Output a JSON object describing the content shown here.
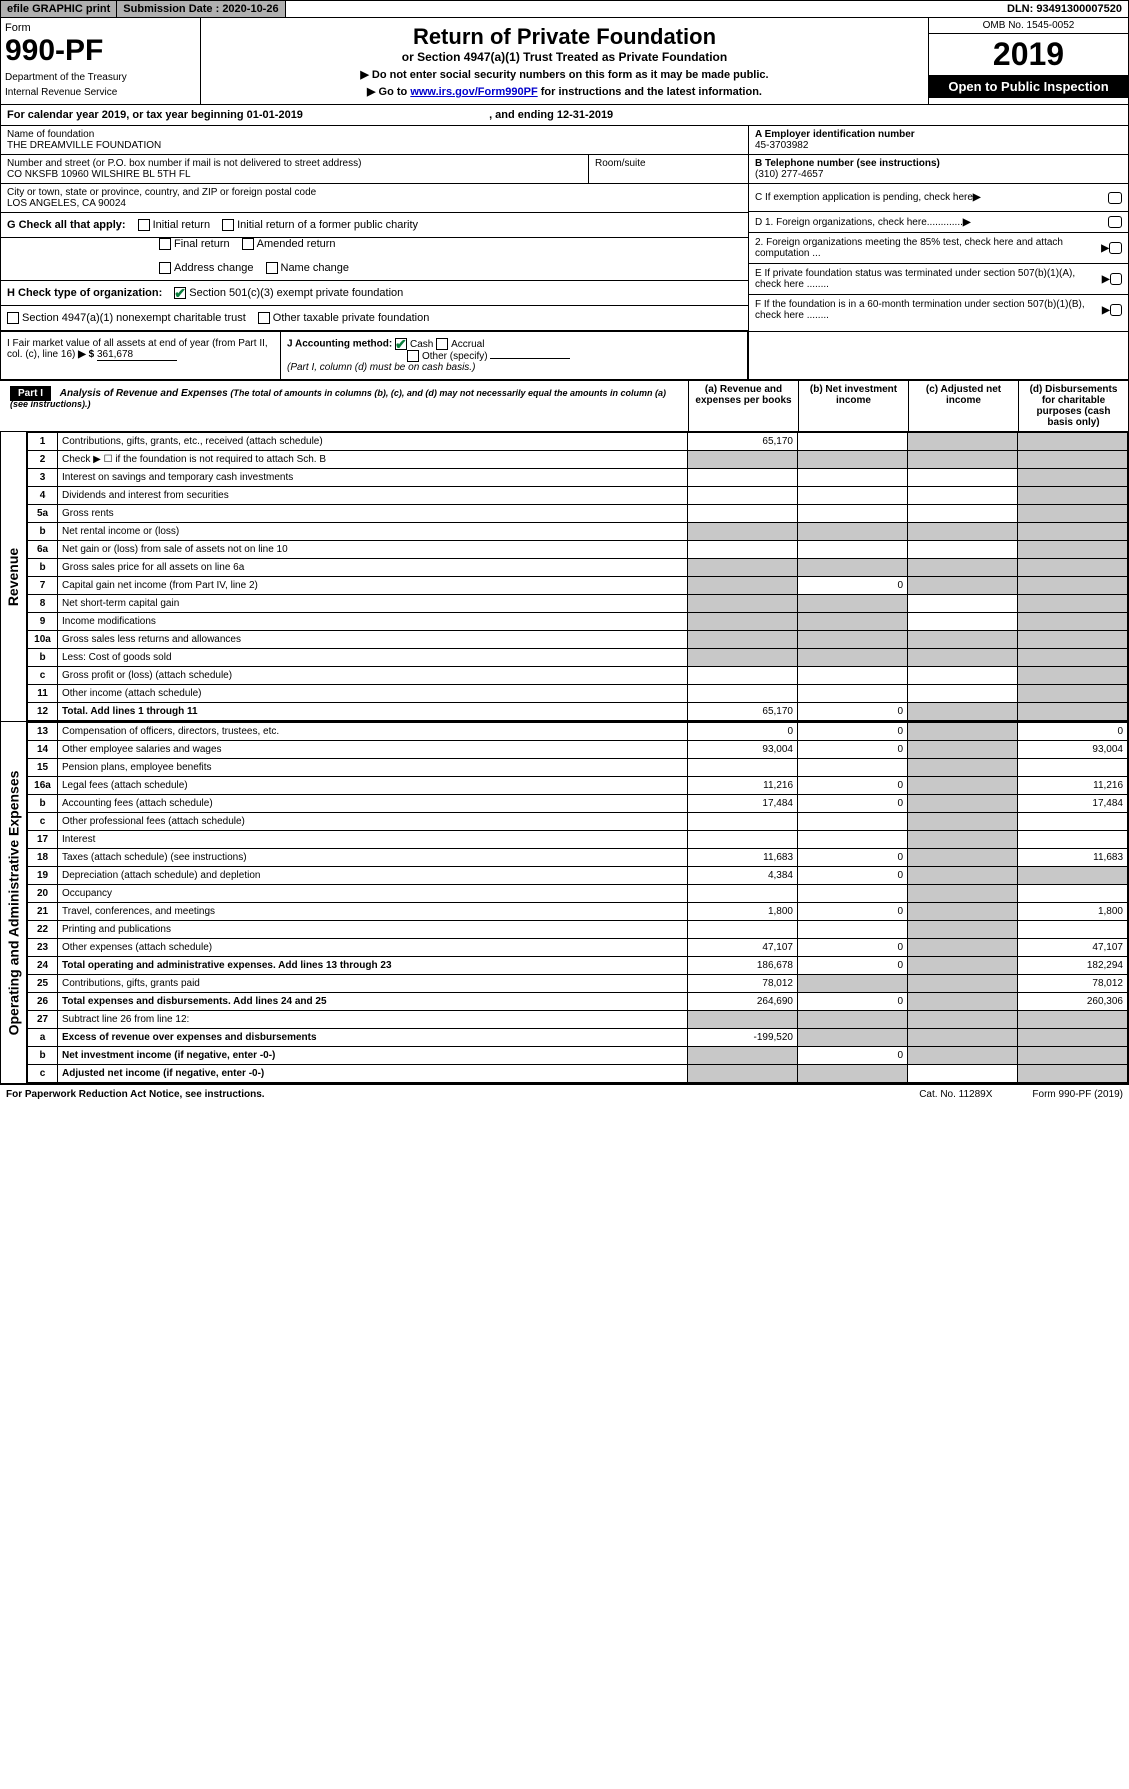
{
  "topbar": {
    "efile": "efile GRAPHIC print",
    "submission": "Submission Date : 2020-10-26",
    "dln": "DLN: 93491300007520"
  },
  "header": {
    "form_label": "Form",
    "form_number": "990-PF",
    "dept": "Department of the Treasury",
    "irs": "Internal Revenue Service",
    "title": "Return of Private Foundation",
    "subtitle": "or Section 4947(a)(1) Trust Treated as Private Foundation",
    "warn1": "▶ Do not enter social security numbers on this form as it may be made public.",
    "warn2_pre": "▶ Go to ",
    "warn2_link": "www.irs.gov/Form990PF",
    "warn2_post": " for instructions and the latest information.",
    "omb": "OMB No. 1545-0052",
    "year": "2019",
    "open": "Open to Public Inspection"
  },
  "calyear": {
    "pre": "For calendar year 2019, or tax year beginning ",
    "begin": "01-01-2019",
    "mid": " , and ending ",
    "end": "12-31-2019"
  },
  "foundation": {
    "name_label": "Name of foundation",
    "name": "THE DREAMVILLE FOUNDATION",
    "addr_label": "Number and street (or P.O. box number if mail is not delivered to street address)",
    "addr": "CO NKSFB 10960 WILSHIRE BL 5TH FL",
    "room_label": "Room/suite",
    "city_label": "City or town, state or province, country, and ZIP or foreign postal code",
    "city": "LOS ANGELES, CA  90024"
  },
  "right_info": {
    "a_label": "A Employer identification number",
    "a_val": "45-3703982",
    "b_label": "B Telephone number (see instructions)",
    "b_val": "(310) 277-4657",
    "c_label": "C If exemption application is pending, check here",
    "d1": "D 1. Foreign organizations, check here.............",
    "d2": "2. Foreign organizations meeting the 85% test, check here and attach computation ...",
    "e": "E If private foundation status was terminated under section 507(b)(1)(A), check here ........",
    "f": "F If the foundation is in a 60-month termination under section 507(b)(1)(B), check here ........"
  },
  "g": {
    "label": "G Check all that apply:",
    "initial": "Initial return",
    "initial_former": "Initial return of a former public charity",
    "final": "Final return",
    "amended": "Amended return",
    "addr_change": "Address change",
    "name_change": "Name change"
  },
  "h": {
    "label": "H Check type of organization:",
    "s501": "Section 501(c)(3) exempt private foundation",
    "s4947": "Section 4947(a)(1) nonexempt charitable trust",
    "other_tax": "Other taxable private foundation"
  },
  "i": {
    "label": "I Fair market value of all assets at end of year (from Part II, col. (c), line 16) ",
    "arrow": "▶ $",
    "val": "361,678"
  },
  "j": {
    "label": "J Accounting method:",
    "cash": "Cash",
    "accrual": "Accrual",
    "other": "Other (specify)",
    "note": "(Part I, column (d) must be on cash basis.)"
  },
  "part1": {
    "label": "Part I",
    "title": "Analysis of Revenue and Expenses",
    "note": "(The total of amounts in columns (b), (c), and (d) may not necessarily equal the amounts in column (a) (see instructions).)",
    "col_a": "(a) Revenue and expenses per books",
    "col_b": "(b) Net investment income",
    "col_c": "(c) Adjusted net income",
    "col_d": "(d) Disbursements for charitable purposes (cash basis only)"
  },
  "side": {
    "revenue": "Revenue",
    "expenses": "Operating and Administrative Expenses"
  },
  "rows": {
    "r1": {
      "n": "1",
      "d": "Contributions, gifts, grants, etc., received (attach schedule)",
      "a": "65,170"
    },
    "r2": {
      "n": "2",
      "d": "Check ▶ ☐ if the foundation is not required to attach Sch. B"
    },
    "r3": {
      "n": "3",
      "d": "Interest on savings and temporary cash investments"
    },
    "r4": {
      "n": "4",
      "d": "Dividends and interest from securities"
    },
    "r5a": {
      "n": "5a",
      "d": "Gross rents"
    },
    "r5b": {
      "n": "b",
      "d": "Net rental income or (loss)"
    },
    "r6a": {
      "n": "6a",
      "d": "Net gain or (loss) from sale of assets not on line 10"
    },
    "r6b": {
      "n": "b",
      "d": "Gross sales price for all assets on line 6a"
    },
    "r7": {
      "n": "7",
      "d": "Capital gain net income (from Part IV, line 2)",
      "b": "0"
    },
    "r8": {
      "n": "8",
      "d": "Net short-term capital gain"
    },
    "r9": {
      "n": "9",
      "d": "Income modifications"
    },
    "r10a": {
      "n": "10a",
      "d": "Gross sales less returns and allowances"
    },
    "r10b": {
      "n": "b",
      "d": "Less: Cost of goods sold"
    },
    "r10c": {
      "n": "c",
      "d": "Gross profit or (loss) (attach schedule)"
    },
    "r11": {
      "n": "11",
      "d": "Other income (attach schedule)"
    },
    "r12": {
      "n": "12",
      "d": "Total. Add lines 1 through 11",
      "a": "65,170",
      "b": "0"
    },
    "r13": {
      "n": "13",
      "d": "Compensation of officers, directors, trustees, etc.",
      "a": "0",
      "b": "0",
      "dd": "0"
    },
    "r14": {
      "n": "14",
      "d": "Other employee salaries and wages",
      "a": "93,004",
      "b": "0",
      "dd": "93,004"
    },
    "r15": {
      "n": "15",
      "d": "Pension plans, employee benefits"
    },
    "r16a": {
      "n": "16a",
      "d": "Legal fees (attach schedule)",
      "a": "11,216",
      "b": "0",
      "dd": "11,216"
    },
    "r16b": {
      "n": "b",
      "d": "Accounting fees (attach schedule)",
      "a": "17,484",
      "b": "0",
      "dd": "17,484"
    },
    "r16c": {
      "n": "c",
      "d": "Other professional fees (attach schedule)"
    },
    "r17": {
      "n": "17",
      "d": "Interest"
    },
    "r18": {
      "n": "18",
      "d": "Taxes (attach schedule) (see instructions)",
      "a": "11,683",
      "b": "0",
      "dd": "11,683"
    },
    "r19": {
      "n": "19",
      "d": "Depreciation (attach schedule) and depletion",
      "a": "4,384",
      "b": "0"
    },
    "r20": {
      "n": "20",
      "d": "Occupancy"
    },
    "r21": {
      "n": "21",
      "d": "Travel, conferences, and meetings",
      "a": "1,800",
      "b": "0",
      "dd": "1,800"
    },
    "r22": {
      "n": "22",
      "d": "Printing and publications"
    },
    "r23": {
      "n": "23",
      "d": "Other expenses (attach schedule)",
      "a": "47,107",
      "b": "0",
      "dd": "47,107"
    },
    "r24": {
      "n": "24",
      "d": "Total operating and administrative expenses. Add lines 13 through 23",
      "a": "186,678",
      "b": "0",
      "dd": "182,294"
    },
    "r25": {
      "n": "25",
      "d": "Contributions, gifts, grants paid",
      "a": "78,012",
      "dd": "78,012"
    },
    "r26": {
      "n": "26",
      "d": "Total expenses and disbursements. Add lines 24 and 25",
      "a": "264,690",
      "b": "0",
      "dd": "260,306"
    },
    "r27": {
      "n": "27",
      "d": "Subtract line 26 from line 12:"
    },
    "r27a": {
      "n": "a",
      "d": "Excess of revenue over expenses and disbursements",
      "a": "-199,520"
    },
    "r27b": {
      "n": "b",
      "d": "Net investment income (if negative, enter -0-)",
      "b": "0"
    },
    "r27c": {
      "n": "c",
      "d": "Adjusted net income (if negative, enter -0-)"
    }
  },
  "footer": {
    "left": "For Paperwork Reduction Act Notice, see instructions.",
    "mid": "Cat. No. 11289X",
    "right": "Form 990-PF (2019)"
  }
}
